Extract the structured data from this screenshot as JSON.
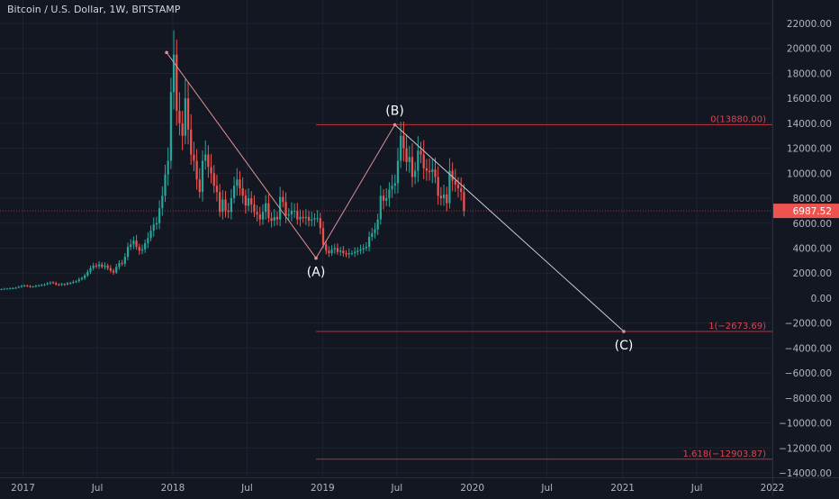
{
  "header": {
    "title": "Bitcoin / U.S. Dollar, 1W, BITSTAMP"
  },
  "colors": {
    "background": "#131722",
    "grid": "#1f2330",
    "axis_text": "#b2b5be",
    "bull": "#26a69a",
    "bear": "#ef5350",
    "wave_line": "#e08f96",
    "projection_line": "#c9cbd2",
    "fib_line": "#b2303c",
    "fib_text": "#e0424f",
    "price_badge": "#ef5350",
    "wave_label": "#ffffff"
  },
  "price_badge": {
    "value": 6987.52,
    "label": "6987.52"
  },
  "chart_data": {
    "type": "candlestick",
    "interval": "1W",
    "y_axis": {
      "position": "right",
      "ylim": [
        -14500,
        23000
      ],
      "ticks": [
        22000,
        20000,
        18000,
        16000,
        14000,
        12000,
        10000,
        8000,
        6000,
        4000,
        2000,
        0,
        -2000,
        -4000,
        -6000,
        -8000,
        -10000,
        -12000,
        -14000
      ],
      "tick_labels": [
        "22000.00",
        "20000.00",
        "18000.00",
        "16000.00",
        "14000.00",
        "12000.00",
        "10000.00",
        "8000.00",
        "6000.00",
        "4000.00",
        "2000.00",
        "0.00",
        "−2000.00",
        "−4000.00",
        "−6000.00",
        "−8000.00",
        "−10000.00",
        "−12000.00",
        "−14000.00"
      ]
    },
    "x_axis": {
      "xlim": [
        "2016-11-06",
        "2022-01-01"
      ],
      "ticks": [
        {
          "date": "2017-01-01",
          "label": "2017"
        },
        {
          "date": "2017-07-01",
          "label": "Jul"
        },
        {
          "date": "2018-01-01",
          "label": "2018"
        },
        {
          "date": "2018-07-01",
          "label": "Jul"
        },
        {
          "date": "2019-01-01",
          "label": "2019"
        },
        {
          "date": "2019-07-01",
          "label": "Jul"
        },
        {
          "date": "2020-01-01",
          "label": "2020"
        },
        {
          "date": "2020-07-01",
          "label": "Jul"
        },
        {
          "date": "2021-01-01",
          "label": "2021"
        },
        {
          "date": "2021-07-01",
          "label": "Jul"
        },
        {
          "date": "2022-01-01",
          "label": "2022"
        }
      ]
    },
    "weekly_close": {
      "start_date": "2016-11-06",
      "values": [
        720,
        750,
        760,
        780,
        800,
        830,
        900,
        980,
        1000,
        960,
        900,
        930,
        980,
        1020,
        1050,
        1100,
        1180,
        1250,
        1210,
        1100,
        1050,
        1120,
        1080,
        1180,
        1230,
        1300,
        1350,
        1500,
        1600,
        1800,
        2100,
        2400,
        2600,
        2550,
        2700,
        2500,
        2600,
        2400,
        2200,
        2050,
        2500,
        2800,
        2750,
        3300,
        4100,
        4300,
        4600,
        4100,
        3800,
        3900,
        4400,
        4800,
        5400,
        5900,
        6000,
        7200,
        8200,
        9900,
        11000,
        16500,
        19500,
        15000,
        14000,
        13000,
        16000,
        13500,
        11500,
        11000,
        9500,
        8500,
        11000,
        11500,
        10500,
        10000,
        9000,
        8500,
        6900,
        7900,
        7000,
        6900,
        8000,
        9000,
        9500,
        8800,
        8200,
        7400,
        8000,
        7500,
        6900,
        6700,
        6300,
        6900,
        7600,
        6400,
        6200,
        6500,
        6300,
        8100,
        7700,
        6600,
        6700,
        7000,
        7000,
        6300,
        6500,
        6400,
        6500,
        6200,
        6300,
        6400,
        6400,
        5600,
        4300,
        3800,
        3600,
        3900,
        4000,
        3700,
        3800,
        3600,
        3500,
        3600,
        3600,
        3700,
        3800,
        3900,
        4000,
        4100,
        4900,
        5200,
        5500,
        6300,
        8200,
        7800,
        8000,
        8700,
        9000,
        9200,
        11000,
        13000,
        12000,
        10900,
        11300,
        9700,
        10200,
        11800,
        11500,
        10400,
        10200,
        10100,
        10300,
        9700,
        8200,
        8000,
        8300,
        7600,
        10200,
        9400,
        9100,
        8800,
        8500,
        6988
      ]
    },
    "annotations": {
      "wave_points": [
        {
          "label": "",
          "date": "2017-12-17",
          "value": 19666
        },
        {
          "label": "(A)",
          "date": "2018-12-16",
          "value": 3200
        },
        {
          "label": "(B)",
          "date": "2019-06-26",
          "value": 13880
        },
        {
          "label": "(C)",
          "date": "2021-01-04",
          "value": -2673.69
        }
      ],
      "fib_levels": [
        {
          "label": "0(13880.00)",
          "value": 13880.0
        },
        {
          "label": "1(−2673.69)",
          "value": -2673.69
        },
        {
          "label": "1.618(−12903.87)",
          "value": -12903.87
        }
      ],
      "fib_start_date": "2018-12-16"
    }
  }
}
